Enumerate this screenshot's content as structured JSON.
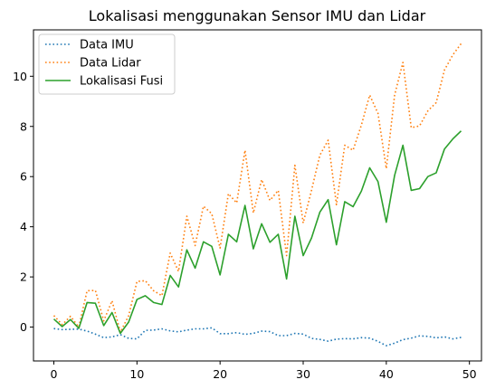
{
  "chart_data": {
    "type": "line",
    "title": "Lokalisasi menggunakan Sensor IMU dan Lidar",
    "xlabel": "",
    "ylabel": "",
    "xlim": [
      -2.45,
      51.45
    ],
    "ylim": [
      -1.35,
      11.85
    ],
    "xticks": [
      0,
      10,
      20,
      30,
      40,
      50
    ],
    "yticks": [
      0,
      2,
      4,
      6,
      8,
      10
    ],
    "grid": false,
    "legend_position": "top-left",
    "x": [
      0,
      1,
      2,
      3,
      4,
      5,
      6,
      7,
      8,
      9,
      10,
      11,
      12,
      13,
      14,
      15,
      16,
      17,
      18,
      19,
      20,
      21,
      22,
      23,
      24,
      25,
      26,
      27,
      28,
      29,
      30,
      31,
      32,
      33,
      34,
      35,
      36,
      37,
      38,
      39,
      40,
      41,
      42,
      43,
      44,
      45,
      46,
      47,
      48,
      49
    ],
    "series": [
      {
        "name": "Data IMU",
        "color": "#1f77b4",
        "style": "dotted",
        "values": [
          -0.06,
          -0.1,
          -0.09,
          -0.08,
          -0.16,
          -0.28,
          -0.42,
          -0.39,
          -0.3,
          -0.45,
          -0.47,
          -0.13,
          -0.12,
          -0.07,
          -0.15,
          -0.19,
          -0.12,
          -0.07,
          -0.07,
          -0.03,
          -0.26,
          -0.26,
          -0.22,
          -0.29,
          -0.25,
          -0.16,
          -0.18,
          -0.34,
          -0.34,
          -0.25,
          -0.28,
          -0.45,
          -0.49,
          -0.56,
          -0.48,
          -0.46,
          -0.47,
          -0.42,
          -0.44,
          -0.57,
          -0.74,
          -0.64,
          -0.5,
          -0.44,
          -0.35,
          -0.37,
          -0.43,
          -0.39,
          -0.47,
          -0.41
        ]
      },
      {
        "name": "Data Lidar",
        "color": "#ff7f0e",
        "style": "dotted",
        "values": [
          0.46,
          0.1,
          0.43,
          0.0,
          1.45,
          1.46,
          0.25,
          1.05,
          -0.2,
          0.45,
          1.82,
          1.85,
          1.45,
          1.25,
          2.95,
          2.22,
          4.42,
          3.25,
          4.82,
          4.52,
          3.15,
          5.32,
          4.95,
          7.05,
          4.55,
          5.88,
          5.05,
          5.45,
          2.85,
          6.45,
          4.15,
          5.45,
          6.85,
          7.45,
          4.88,
          7.25,
          7.05,
          8.05,
          9.25,
          8.52,
          6.32,
          9.25,
          10.55,
          7.95,
          8.02,
          8.62,
          8.95,
          10.25,
          10.85,
          11.3
        ]
      },
      {
        "name": "Lokalisasi Fusi",
        "color": "#2ca02c",
        "style": "solid",
        "values": [
          0.32,
          0.02,
          0.3,
          -0.05,
          0.98,
          0.95,
          0.06,
          0.58,
          -0.25,
          0.2,
          1.1,
          1.25,
          0.98,
          0.9,
          2.06,
          1.6,
          3.08,
          2.35,
          3.4,
          3.22,
          2.08,
          3.7,
          3.4,
          4.85,
          3.12,
          4.12,
          3.38,
          3.7,
          1.92,
          4.42,
          2.85,
          3.55,
          4.58,
          5.08,
          3.28,
          5.0,
          4.8,
          5.42,
          6.35,
          5.8,
          4.18,
          6.05,
          7.25,
          5.45,
          5.52,
          6.0,
          6.15,
          7.1,
          7.5,
          7.82
        ]
      }
    ]
  }
}
